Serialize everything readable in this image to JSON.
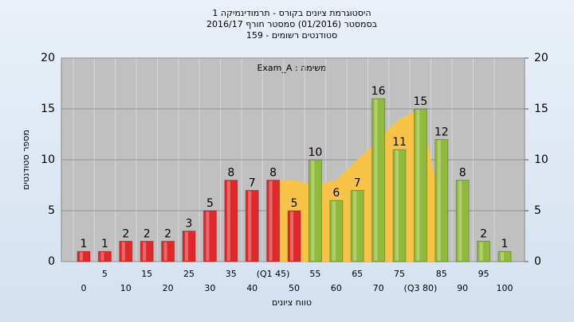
{
  "chart_data": {
    "type": "bar",
    "title": "היסטוגרמת ציונים בקורס - תרמודינמיקה 1",
    "subtitle": "בסמסטר  (01/2016)  סמסטר חורף 2016/17",
    "subtitle2": "סטודנטים רשומים - 159",
    "annotation": "משימה : Exam_A",
    "x_label": "טווח ציונים",
    "y_label": "מספר סטודנטים",
    "categories": [
      "0",
      "5",
      "10",
      "15",
      "20",
      "25",
      "30",
      "35",
      "40",
      "(Q1 45)",
      "50",
      "55",
      "60",
      "65",
      "70",
      "75",
      "(Q3 80)",
      "85",
      "90",
      "95",
      "100"
    ],
    "values": [
      1,
      1,
      2,
      2,
      2,
      3,
      5,
      8,
      7,
      8,
      5,
      10,
      6,
      7,
      16,
      11,
      15,
      12,
      8,
      2,
      1
    ],
    "colors": [
      "#e0282a",
      "#e0282a",
      "#e0282a",
      "#e0282a",
      "#e0282a",
      "#e0282a",
      "#e0282a",
      "#e0282a",
      "#e0282a",
      "#e0282a",
      "#e0282a",
      "#8fba3a",
      "#8fba3a",
      "#8fba3a",
      "#8fba3a",
      "#8fba3a",
      "#8fba3a",
      "#8fba3a",
      "#8fba3a",
      "#8fba3a",
      "#8fba3a"
    ],
    "band": {
      "color": "#f7c447",
      "values": [
        null,
        null,
        null,
        null,
        null,
        null,
        null,
        null,
        null,
        8,
        8,
        7.5,
        8,
        10,
        12,
        14,
        15,
        5,
        null,
        null,
        null
      ]
    },
    "ylim": [
      0,
      20
    ],
    "yticks": [
      0,
      5,
      10,
      15,
      20
    ],
    "y2lim": [
      0,
      20
    ],
    "y2ticks": [
      0,
      5,
      10,
      15,
      20
    ],
    "grid": true
  }
}
